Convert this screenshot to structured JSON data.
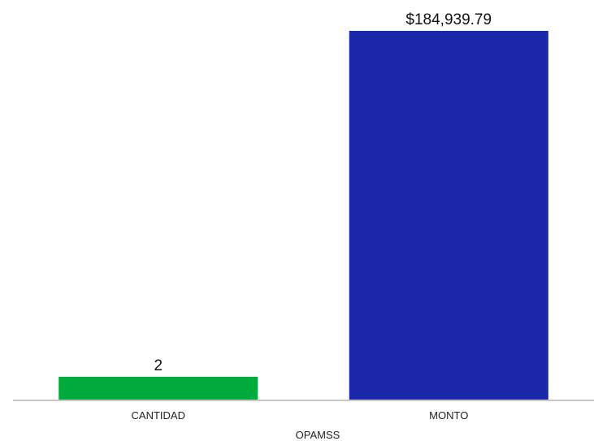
{
  "chart_data": {
    "type": "bar",
    "title": "",
    "xlabel": "OPAMSS",
    "ylabel": "",
    "categories": [
      "CANTIDAD",
      "MONTO"
    ],
    "bars": [
      {
        "category": "CANTIDAD",
        "label": "2",
        "fraction_of_max": 0.062,
        "color": "#00AA3C"
      },
      {
        "category": "MONTO",
        "label": "$184,939.79",
        "fraction_of_max": 1.0,
        "color": "#1A27A8"
      }
    ],
    "grid": false,
    "legend": "none",
    "baseline_color": "#C8C8C8"
  }
}
